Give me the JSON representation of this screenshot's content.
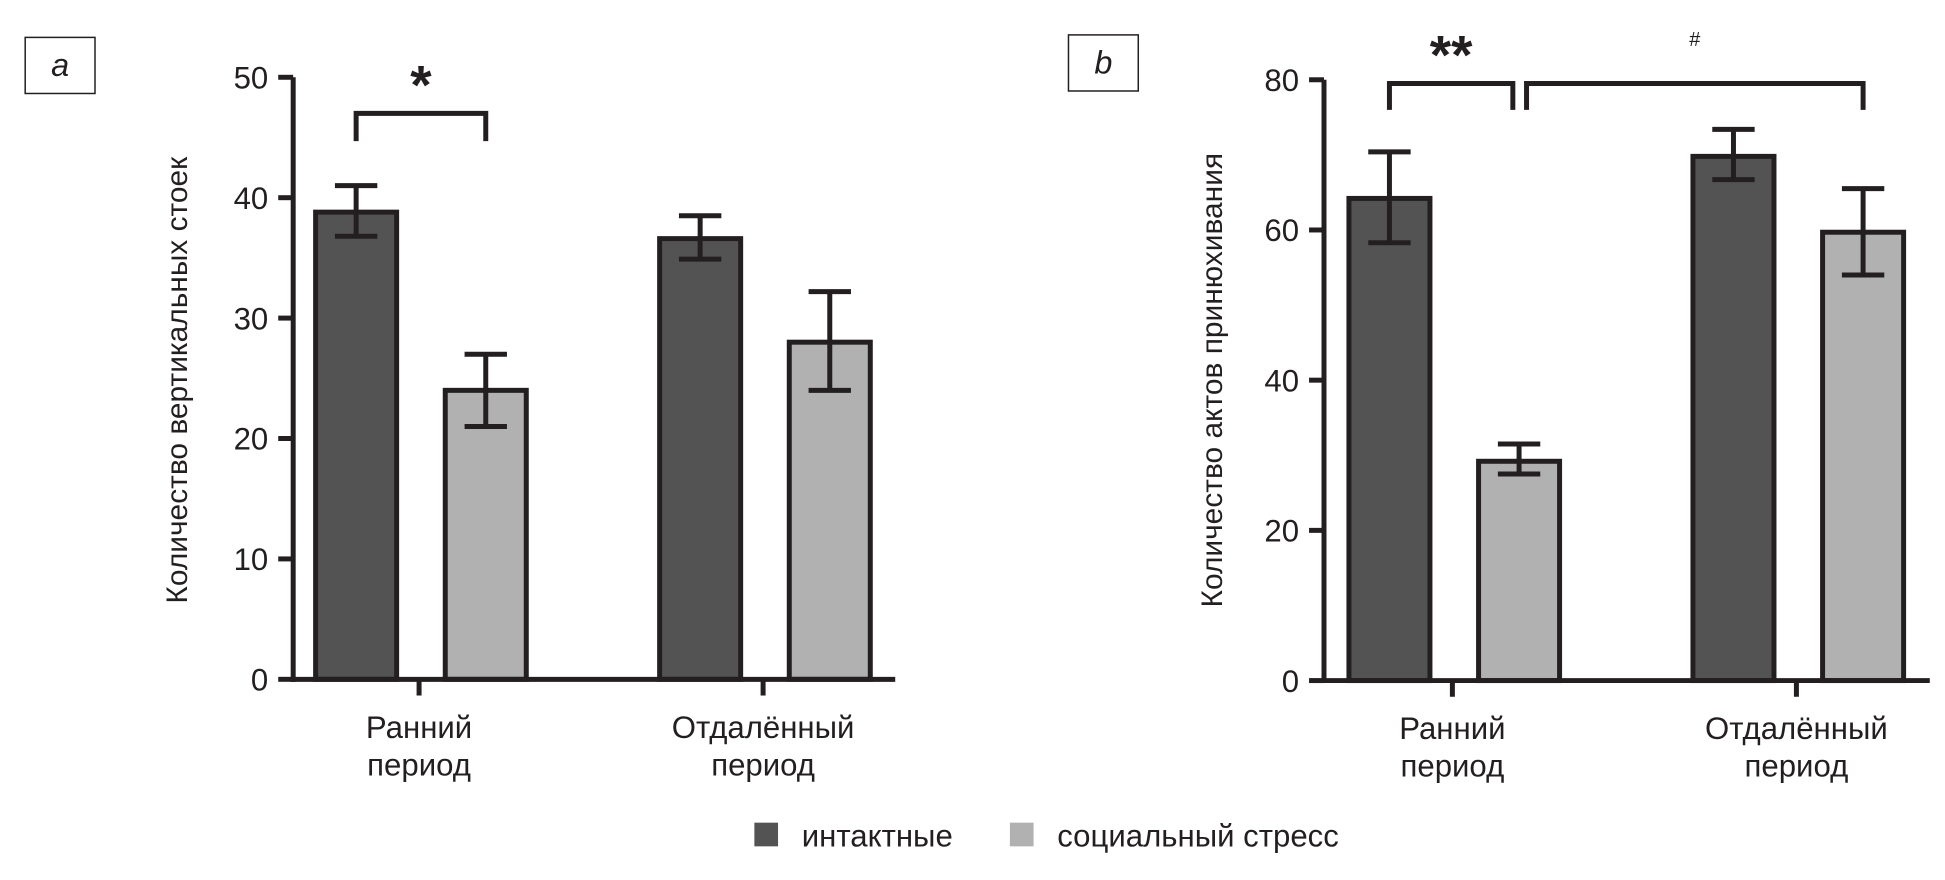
{
  "chart_data": [
    {
      "type": "bar",
      "panel_label": "a",
      "ylabel": "Количество вертикальных стоек",
      "ylim": [
        0,
        50
      ],
      "yticks": [
        0,
        10,
        20,
        30,
        40,
        50
      ],
      "categories": [
        [
          "Ранний",
          "период"
        ],
        [
          "Отдалённый",
          "период"
        ]
      ],
      "series": [
        {
          "name": "интактные",
          "color": "#545354",
          "values": [
            38.8,
            36.6
          ],
          "err_low": [
            36.8,
            34.9
          ],
          "err_high": [
            41.0,
            38.5
          ]
        },
        {
          "name": "социальный стресс",
          "color": "#b1b1b1",
          "values": [
            24.0,
            28.0
          ],
          "err_low": [
            21.0,
            24.0
          ],
          "err_high": [
            27.0,
            32.2
          ]
        }
      ],
      "annotations": [
        {
          "text": "*",
          "from": [
            0,
            0
          ],
          "to": [
            0,
            1
          ],
          "level": 47,
          "leg": 44.7
        }
      ]
    },
    {
      "type": "bar",
      "panel_label": "b",
      "ylabel": "Количество актов принюхивания",
      "ylim": [
        0,
        80
      ],
      "yticks": [
        0,
        20,
        40,
        60,
        80
      ],
      "categories": [
        [
          "Ранний",
          "период"
        ],
        [
          "Отдалённый",
          "период"
        ]
      ],
      "series": [
        {
          "name": "интактные",
          "color": "#545354",
          "values": [
            64.2,
            69.8
          ],
          "err_low": [
            58.3,
            66.7
          ],
          "err_high": [
            70.4,
            73.4
          ]
        },
        {
          "name": "социальный стресс",
          "color": "#b1b1b1",
          "values": [
            29.2,
            59.7
          ],
          "err_low": [
            27.5,
            54.0
          ],
          "err_high": [
            31.5,
            65.5
          ]
        }
      ],
      "annotations": [
        {
          "text": "**",
          "from": [
            0,
            0
          ],
          "to": [
            0,
            1
          ],
          "level": 79.5,
          "leg": 76
        },
        {
          "text": "#",
          "from": [
            0,
            1
          ],
          "to": [
            1,
            1
          ],
          "level": 79.5,
          "leg": 76
        }
      ]
    }
  ],
  "legend": [
    {
      "label": "интактные",
      "color": "#545354"
    },
    {
      "label": "социальный стресс",
      "color": "#b1b1b1"
    }
  ]
}
